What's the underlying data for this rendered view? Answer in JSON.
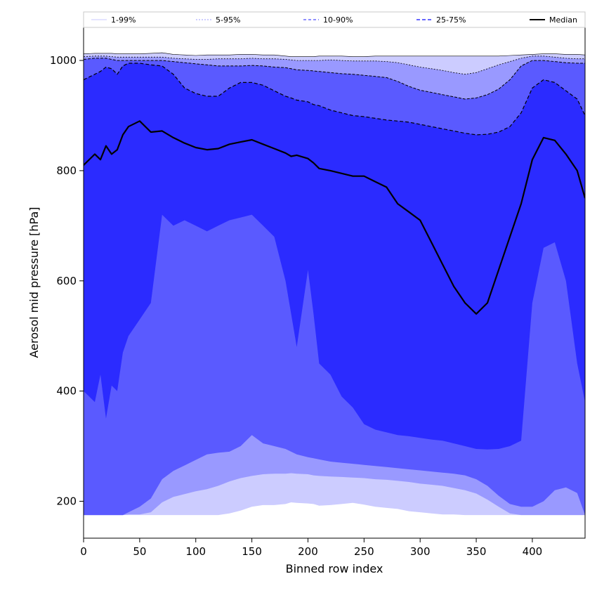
{
  "chart_data": {
    "type": "area",
    "title": "",
    "xlabel": "Binned row index",
    "ylabel": "Aerosol mid pressure [hPa]",
    "xlim": [
      0,
      447
    ],
    "ylim": [
      133,
      1060
    ],
    "xticks": [
      0,
      50,
      100,
      150,
      200,
      250,
      300,
      350,
      400
    ],
    "yticks": [
      200,
      400,
      600,
      800,
      1000
    ],
    "grid": false,
    "legend_position": "top",
    "x": [
      0,
      10,
      15,
      20,
      25,
      30,
      35,
      40,
      50,
      60,
      70,
      80,
      90,
      100,
      110,
      120,
      130,
      140,
      150,
      160,
      170,
      180,
      185,
      190,
      200,
      205,
      210,
      220,
      230,
      240,
      250,
      260,
      270,
      280,
      290,
      300,
      310,
      320,
      330,
      340,
      350,
      360,
      370,
      380,
      390,
      400,
      410,
      420,
      430,
      440,
      447
    ],
    "bands": [
      {
        "name": "1-99%",
        "color": "#ccccff",
        "upper": [
          1012,
          1013,
          1013,
          1013,
          1013,
          1012,
          1012,
          1012,
          1012,
          1013,
          1014,
          1011,
          1010,
          1009,
          1010,
          1010,
          1010,
          1011,
          1011,
          1010,
          1010,
          1008,
          1007,
          1007,
          1007,
          1007,
          1008,
          1008,
          1008,
          1007,
          1007,
          1008,
          1008,
          1008,
          1008,
          1008,
          1008,
          1008,
          1008,
          1008,
          1008,
          1008,
          1008,
          1009,
          1010,
          1011,
          1012,
          1012,
          1011,
          1011,
          1010
        ],
        "lower": [
          175,
          175,
          175,
          175,
          175,
          175,
          175,
          175,
          175,
          175,
          175,
          175,
          175,
          175,
          175,
          175,
          178,
          183,
          190,
          193,
          193,
          195,
          198,
          197,
          196,
          195,
          192,
          193,
          195,
          197,
          194,
          190,
          188,
          186,
          182,
          180,
          178,
          176,
          176,
          175,
          175,
          175,
          175,
          175,
          175,
          175,
          175,
          175,
          175,
          175,
          175
        ]
      },
      {
        "name": "5-95%",
        "color": "#9999ff",
        "upper": [
          1007,
          1008,
          1008,
          1008,
          1007,
          1006,
          1006,
          1006,
          1006,
          1006,
          1006,
          1004,
          1003,
          1002,
          1002,
          1003,
          1003,
          1003,
          1004,
          1003,
          1003,
          1002,
          1001,
          1000,
          1000,
          1000,
          1000,
          1001,
          1000,
          999,
          999,
          999,
          998,
          996,
          992,
          988,
          985,
          982,
          978,
          975,
          978,
          985,
          992,
          998,
          1004,
          1008,
          1008,
          1006,
          1004,
          1003,
          1003
        ],
        "lower": [
          175,
          175,
          175,
          175,
          175,
          175,
          175,
          176,
          176,
          180,
          198,
          208,
          213,
          218,
          222,
          228,
          236,
          242,
          246,
          249,
          250,
          250,
          251,
          250,
          249,
          247,
          246,
          245,
          244,
          243,
          242,
          240,
          239,
          237,
          235,
          232,
          230,
          228,
          224,
          220,
          214,
          203,
          190,
          178,
          175,
          175,
          175,
          175,
          175,
          175,
          175
        ]
      },
      {
        "name": "10-90%",
        "color": "#5a5aff",
        "upper": [
          1002,
          1004,
          1004,
          1004,
          1002,
          1000,
          1000,
          1000,
          1000,
          1000,
          1000,
          998,
          996,
          994,
          992,
          990,
          990,
          990,
          991,
          990,
          988,
          987,
          985,
          983,
          982,
          981,
          980,
          978,
          976,
          975,
          973,
          971,
          969,
          962,
          953,
          946,
          942,
          938,
          934,
          930,
          932,
          938,
          948,
          965,
          990,
          1000,
          1000,
          998,
          996,
          995,
          995
        ],
        "lower": [
          175,
          175,
          175,
          175,
          175,
          175,
          175,
          180,
          190,
          205,
          240,
          255,
          265,
          275,
          285,
          288,
          290,
          300,
          320,
          305,
          300,
          295,
          290,
          285,
          280,
          278,
          276,
          272,
          270,
          268,
          266,
          264,
          262,
          260,
          258,
          256,
          254,
          252,
          250,
          247,
          240,
          228,
          210,
          195,
          190,
          190,
          200,
          220,
          225,
          215,
          175
        ]
      },
      {
        "name": "25-75%",
        "color": "#2b2bff",
        "upper": [
          965,
          975,
          980,
          988,
          985,
          975,
          990,
          995,
          995,
          992,
          990,
          975,
          950,
          940,
          935,
          935,
          950,
          960,
          960,
          955,
          945,
          935,
          932,
          928,
          925,
          920,
          918,
          910,
          905,
          900,
          898,
          895,
          892,
          890,
          888,
          884,
          880,
          876,
          872,
          868,
          865,
          866,
          870,
          880,
          905,
          950,
          965,
          960,
          945,
          930,
          900
        ],
        "lower": [
          400,
          380,
          430,
          350,
          410,
          400,
          470,
          500,
          530,
          560,
          720,
          700,
          710,
          700,
          690,
          700,
          710,
          715,
          720,
          700,
          680,
          600,
          540,
          480,
          620,
          540,
          450,
          430,
          390,
          370,
          340,
          330,
          325,
          320,
          318,
          315,
          312,
          310,
          305,
          300,
          295,
          294,
          295,
          300,
          310,
          560,
          660,
          670,
          600,
          450,
          380
        ]
      }
    ],
    "series": [
      {
        "name": "Median",
        "color": "#000000",
        "values": [
          810,
          830,
          820,
          845,
          830,
          838,
          865,
          880,
          890,
          870,
          872,
          860,
          850,
          842,
          838,
          840,
          848,
          852,
          856,
          848,
          840,
          832,
          826,
          828,
          822,
          814,
          804,
          800,
          795,
          790,
          790,
          780,
          770,
          740,
          725,
          710,
          670,
          630,
          590,
          560,
          540,
          560,
          620,
          680,
          740,
          820,
          860,
          855,
          830,
          800,
          750
        ]
      }
    ],
    "band_edge_lines": [
      {
        "band": "1-99%",
        "edge": "upper",
        "width": 0.6,
        "dash": ""
      },
      {
        "band": "5-95%",
        "edge": "upper",
        "width": 0.8,
        "dash": "2 2"
      },
      {
        "band": "10-90%",
        "edge": "upper",
        "width": 1.0,
        "dash": "4 2"
      },
      {
        "band": "25-75%",
        "edge": "upper",
        "width": 1.2,
        "dash": "5 3"
      }
    ],
    "legend": [
      {
        "label": "1-99%",
        "color": "#c8c8ff",
        "dash": "",
        "width": 1
      },
      {
        "label": "5-95%",
        "color": "#9a9aff",
        "dash": "2 2",
        "width": 1
      },
      {
        "label": "10-90%",
        "color": "#6a6aff",
        "dash": "4 3",
        "width": 1.5
      },
      {
        "label": "25-75%",
        "color": "#3535ff",
        "dash": "5 3",
        "width": 1.5
      },
      {
        "label": "Median",
        "color": "#000000",
        "dash": "",
        "width": 2
      }
    ]
  }
}
